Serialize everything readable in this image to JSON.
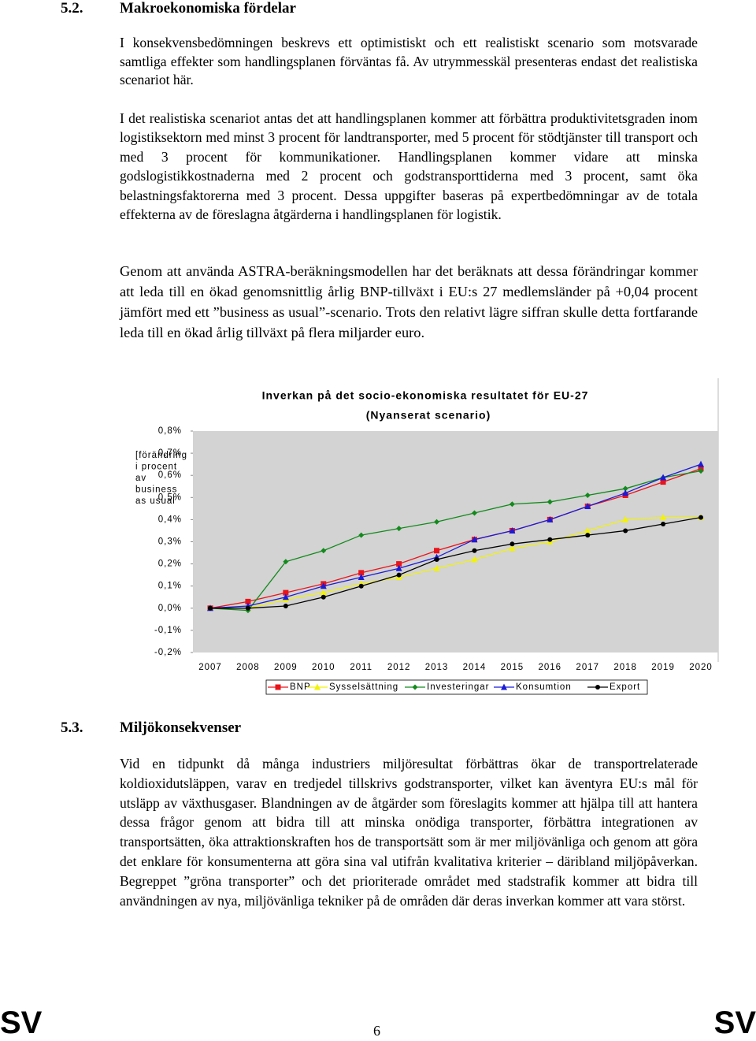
{
  "document": {
    "section1": {
      "number": "5.2.",
      "title": "Makroekonomiska fördelar"
    },
    "paragraphs1": [
      "I konsekvensbedömningen beskrevs ett optimistiskt och ett realistiskt scenario som motsvarade samtliga effekter som handlingsplanen förväntas få. Av utrymmesskäl presenteras endast det realistiska scenariot här.",
      "I det realistiska scenariot antas det att handlingsplanen kommer att förbättra produktivitetsgraden inom logistiksektorn med minst 3 procent för landtransporter, med 5 procent för stödtjänster till transport och med 3 procent för kommunikationer. Handlingsplanen kommer vidare att minska godslogistikkostnaderna med 2 procent och godstransporttiderna med 3 procent, samt öka belastningsfaktorerna med 3 procent. Dessa uppgifter baseras på expertbedömningar av de totala effekterna av de föreslagna åtgärderna i handlingsplanen för logistik.",
      "Genom att använda ASTRA-beräkningsmodellen har det beräknats att dessa förändringar kommer att leda till en ökad genomsnittlig årlig BNP-tillväxt i EU:s 27 medlemsländer på +0,04 procent jämfört med ett ”business as usual”-scenario. Trots den relativt lägre siffran skulle detta fortfarande leda till en ökad årlig tillväxt på flera miljarder euro."
    ],
    "section2": {
      "number": "5.3.",
      "title": "Miljökonsekvenser"
    },
    "paragraphs2": [
      "Vid en tidpunkt då många industriers miljöresultat förbättras ökar de transportrelaterade koldioxidutsläppen, varav en tredjedel tillskrivs godstransporter, vilket kan äventyra EU:s mål för utsläpp av växthusgaser. Blandningen av de åtgärder som föreslagits kommer att hjälpa till att hantera dessa frågor genom att bidra till att minska onödiga transporter, förbättra integrationen av transportsätten, öka attraktionskraften hos de transportsätt som är mer miljövänliga och genom att göra det enklare för konsumenterna att göra sina val utifrån kvalitativa kriterier – däribland miljöpåverkan. Begreppet ”gröna transporter” och det prioriterade området med stadstrafik kommer att bidra till användningen av nya, miljövänliga tekniker på de områden där deras inverkan kommer att vara störst."
    ],
    "footer": {
      "left": "SV",
      "page": "6",
      "right": "SV"
    }
  },
  "chart_data": {
    "type": "line",
    "title": "Inverkan på det socio-ekonomiska resultatet för EU-27",
    "subtitle": "(Nyanserat scenario)",
    "y_label": "[förändring i procent av business as usual",
    "categories": [
      "2007",
      "2008",
      "2009",
      "2010",
      "2011",
      "2012",
      "2013",
      "2014",
      "2015",
      "2016",
      "2017",
      "2018",
      "2019",
      "2020"
    ],
    "ylim": [
      -0.2,
      0.8
    ],
    "yticks": [
      {
        "value": -0.2,
        "label": "-0,2%"
      },
      {
        "value": -0.1,
        "label": "-0,1%"
      },
      {
        "value": 0,
        "label": "0,0%"
      },
      {
        "value": 0.1,
        "label": "0,1%"
      },
      {
        "value": 0.2,
        "label": "0,2%"
      },
      {
        "value": 0.3,
        "label": "0,3%"
      },
      {
        "value": 0.4,
        "label": "0,4%"
      },
      {
        "value": 0.5,
        "label": "0,5%"
      },
      {
        "value": 0.6,
        "label": "0,6%"
      },
      {
        "value": 0.7,
        "label": "0,7%"
      },
      {
        "value": 0.8,
        "label": "0,8%"
      }
    ],
    "grid": false,
    "legend": "bottom",
    "series": [
      {
        "name": "BNP",
        "color": "#e8141b",
        "marker": "square",
        "values": [
          0,
          0.03,
          0.07,
          0.11,
          0.16,
          0.2,
          0.26,
          0.31,
          0.35,
          0.4,
          0.46,
          0.51,
          0.57,
          0.63
        ]
      },
      {
        "name": "Sysselsättning",
        "color": "#f2f20a",
        "marker": "triangle",
        "values": [
          0,
          0,
          0.04,
          0.07,
          0.11,
          0.14,
          0.18,
          0.22,
          0.27,
          0.3,
          0.35,
          0.4,
          0.41,
          0.41
        ]
      },
      {
        "name": "Investeringar",
        "color": "#138a1c",
        "marker": "diamond",
        "values": [
          0,
          -0.01,
          0.21,
          0.26,
          0.33,
          0.36,
          0.39,
          0.43,
          0.47,
          0.48,
          0.51,
          0.54,
          0.59,
          0.62
        ]
      },
      {
        "name": "Konsumtion",
        "color": "#1b1bd6",
        "marker": "triangle",
        "values": [
          0,
          0.01,
          0.05,
          0.1,
          0.14,
          0.18,
          0.23,
          0.31,
          0.35,
          0.4,
          0.46,
          0.52,
          0.59,
          0.65
        ]
      },
      {
        "name": "Export",
        "color": "#000000",
        "marker": "circle",
        "values": [
          0,
          0,
          0.01,
          0.05,
          0.1,
          0.15,
          0.22,
          0.26,
          0.29,
          0.31,
          0.33,
          0.35,
          0.38,
          0.41
        ]
      }
    ]
  }
}
